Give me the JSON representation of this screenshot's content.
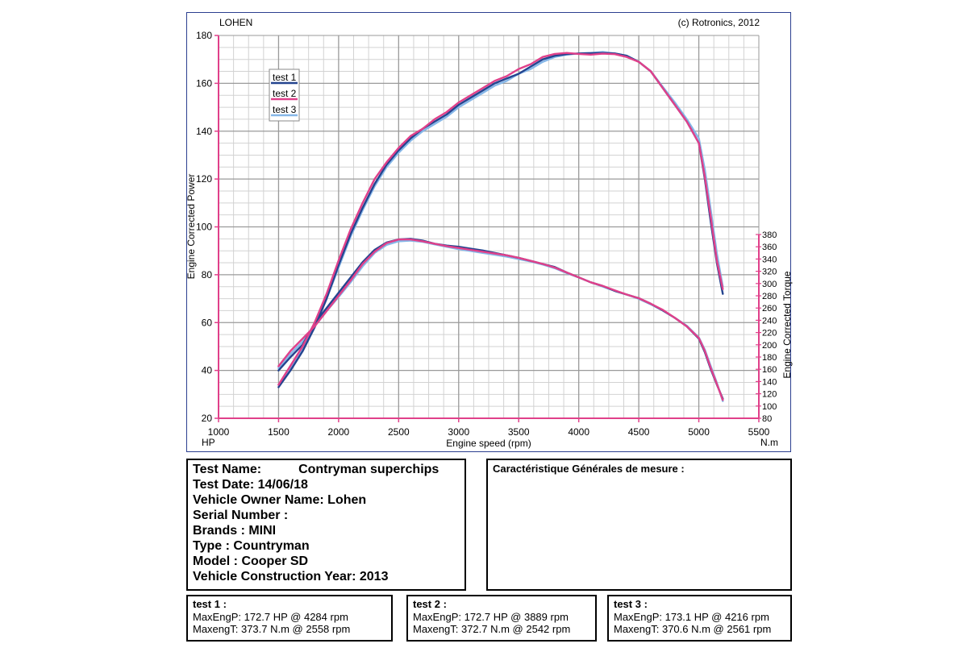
{
  "header": {
    "left_label": "LOHEN",
    "right_label": "(c) Rotronics, 2012"
  },
  "chart_data": {
    "type": "line",
    "xlabel": "Engine speed (rpm)",
    "ylabel_left": "Engine Corrected Power",
    "ylabel_right": "Engine Corrected Torque",
    "unit_left": "HP",
    "unit_right": "N.m",
    "xlim": [
      1000,
      5500
    ],
    "ylim_left": [
      20,
      180
    ],
    "ylim_right": [
      80,
      380
    ],
    "x_ticks": [
      1000,
      1500,
      2000,
      2500,
      3000,
      3500,
      4000,
      4500,
      5000,
      5500
    ],
    "y_left_ticks": [
      20,
      40,
      60,
      80,
      100,
      120,
      140,
      160,
      180
    ],
    "y_right_ticks": [
      80,
      100,
      120,
      140,
      160,
      180,
      200,
      220,
      240,
      260,
      280,
      300,
      320,
      340,
      360,
      380
    ],
    "grid": true,
    "legend_position": "top-left",
    "series_colors": [
      "#24448f",
      "#e0408a",
      "#86b7e8"
    ],
    "power": [
      {
        "name": "test 1",
        "x": [
          1500,
          1600,
          1700,
          1800,
          1900,
          2000,
          2100,
          2200,
          2300,
          2400,
          2500,
          2600,
          2700,
          2800,
          2900,
          3000,
          3100,
          3200,
          3300,
          3400,
          3500,
          3600,
          3700,
          3800,
          3900,
          4000,
          4100,
          4200,
          4300,
          4400,
          4500,
          4600,
          4700,
          4800,
          4900,
          5000,
          5050,
          5100,
          5150,
          5200
        ],
        "y": [
          33,
          40,
          48,
          58,
          70,
          84,
          97,
          108,
          118,
          126,
          132,
          137,
          141,
          144,
          147,
          151,
          154,
          157,
          160,
          162,
          164,
          167,
          170,
          171.5,
          172.2,
          172.5,
          172.6,
          172.7,
          172.5,
          171.5,
          169,
          165,
          158,
          151,
          144,
          135,
          120,
          102,
          85,
          72
        ]
      },
      {
        "name": "test 2",
        "x": [
          1500,
          1600,
          1700,
          1800,
          1900,
          2000,
          2100,
          2200,
          2300,
          2400,
          2500,
          2600,
          2700,
          2800,
          2900,
          3000,
          3100,
          3200,
          3300,
          3400,
          3500,
          3600,
          3700,
          3800,
          3900,
          4000,
          4100,
          4200,
          4300,
          4400,
          4500,
          4600,
          4700,
          4800,
          4900,
          5000,
          5050,
          5100,
          5150,
          5200
        ],
        "y": [
          34,
          42,
          50,
          60,
          72,
          86,
          99,
          110,
          120,
          127,
          133,
          138,
          141,
          145,
          148,
          152,
          155,
          158,
          161,
          163,
          166,
          168,
          171,
          172.3,
          172.7,
          172.3,
          172,
          172.4,
          172.2,
          171,
          169,
          165,
          158,
          151,
          144,
          135,
          121,
          104,
          86,
          74
        ]
      },
      {
        "name": "test 3",
        "x": [
          1500,
          1600,
          1700,
          1800,
          1900,
          2000,
          2100,
          2200,
          2300,
          2400,
          2500,
          2600,
          2700,
          2800,
          2900,
          3000,
          3100,
          3200,
          3300,
          3400,
          3500,
          3600,
          3700,
          3800,
          3900,
          4000,
          4100,
          4200,
          4300,
          4400,
          4500,
          4600,
          4700,
          4800,
          4900,
          5000,
          5050,
          5100,
          5150,
          5200
        ],
        "y": [
          34,
          41,
          49,
          58,
          70,
          83,
          96,
          107,
          117,
          125,
          131,
          136,
          140,
          143,
          146,
          150,
          153,
          156,
          159,
          161,
          164,
          166,
          169,
          171,
          172,
          172.5,
          172.7,
          173.1,
          172.5,
          171.5,
          169,
          165,
          158.5,
          152,
          145,
          137,
          124,
          107,
          89,
          75
        ]
      }
    ],
    "torque": [
      {
        "name": "test 1",
        "x": [
          1500,
          1600,
          1700,
          1800,
          1900,
          2000,
          2100,
          2200,
          2300,
          2400,
          2500,
          2600,
          2700,
          2800,
          2900,
          3000,
          3100,
          3200,
          3300,
          3400,
          3500,
          3600,
          3700,
          3800,
          3900,
          4000,
          4100,
          4200,
          4300,
          4400,
          4500,
          4600,
          4700,
          4800,
          4900,
          5000,
          5050,
          5100,
          5150,
          5200
        ],
        "y": [
          158,
          180,
          200,
          235,
          260,
          285,
          310,
          335,
          355,
          367,
          372,
          373,
          370,
          365,
          362,
          360,
          357,
          354,
          350,
          346,
          342,
          337,
          332,
          327,
          318,
          310,
          302,
          296,
          288,
          282,
          276,
          267,
          256,
          244,
          230,
          210,
          188,
          160,
          135,
          112
        ]
      },
      {
        "name": "test 2",
        "x": [
          1500,
          1600,
          1700,
          1800,
          1900,
          2000,
          2100,
          2200,
          2300,
          2400,
          2500,
          2600,
          2700,
          2800,
          2900,
          3000,
          3100,
          3200,
          3300,
          3400,
          3500,
          3600,
          3700,
          3800,
          3900,
          4000,
          4100,
          4200,
          4300,
          4400,
          4500,
          4600,
          4700,
          4800,
          4900,
          5000,
          5050,
          5100,
          5150,
          5200
        ],
        "y": [
          165,
          190,
          210,
          230,
          255,
          280,
          305,
          332,
          352,
          366,
          372,
          372,
          369,
          365,
          361,
          358,
          355,
          352,
          349,
          346,
          342,
          337,
          332,
          326,
          318,
          310,
          302,
          296,
          289,
          282,
          276,
          267,
          257,
          244,
          230,
          211,
          190,
          162,
          136,
          110
        ]
      },
      {
        "name": "test 3",
        "x": [
          1500,
          1600,
          1700,
          1800,
          1900,
          2000,
          2100,
          2200,
          2300,
          2400,
          2500,
          2600,
          2700,
          2800,
          2900,
          3000,
          3100,
          3200,
          3300,
          3400,
          3500,
          3600,
          3700,
          3800,
          3900,
          4000,
          4100,
          4200,
          4300,
          4400,
          4500,
          4600,
          4700,
          4800,
          4900,
          5000,
          5050,
          5100,
          5150,
          5200
        ],
        "y": [
          162,
          185,
          205,
          230,
          255,
          278,
          302,
          328,
          350,
          363,
          369,
          370,
          368,
          364,
          360,
          356,
          353,
          350,
          347,
          344,
          340,
          336,
          331,
          325,
          317,
          310,
          302,
          295,
          288,
          282,
          275,
          266,
          256,
          244,
          231,
          212,
          192,
          165,
          138,
          108
        ]
      }
    ]
  },
  "info": {
    "test_name_label": "Test Name:",
    "test_name_value": "Contryman superchips",
    "test_date": "Test Date: 14/06/18",
    "owner": "Vehicle Owner Name: Lohen",
    "serial": "Serial Number  :",
    "brands": "Brands  : MINI",
    "type": "Type  : Countryman",
    "model": "Model  : Cooper SD",
    "year": "Vehicle Construction Year: 2013"
  },
  "characteristics": {
    "title": "Caractéristique Générales de mesure :"
  },
  "tests": [
    {
      "title": "test 1 :",
      "power": "MaxEngP: 172.7 HP @ 4284 rpm",
      "torque": "MaxengT: 373.7 N.m @ 2558 rpm"
    },
    {
      "title": "test 2 :",
      "power": "MaxEngP: 172.7 HP @ 3889 rpm",
      "torque": "MaxengT: 372.7 N.m @ 2542 rpm"
    },
    {
      "title": "test 3 :",
      "power": "MaxEngP: 173.1 HP @ 4216 rpm",
      "torque": "MaxengT: 370.6 N.m @ 2561 rpm"
    }
  ]
}
